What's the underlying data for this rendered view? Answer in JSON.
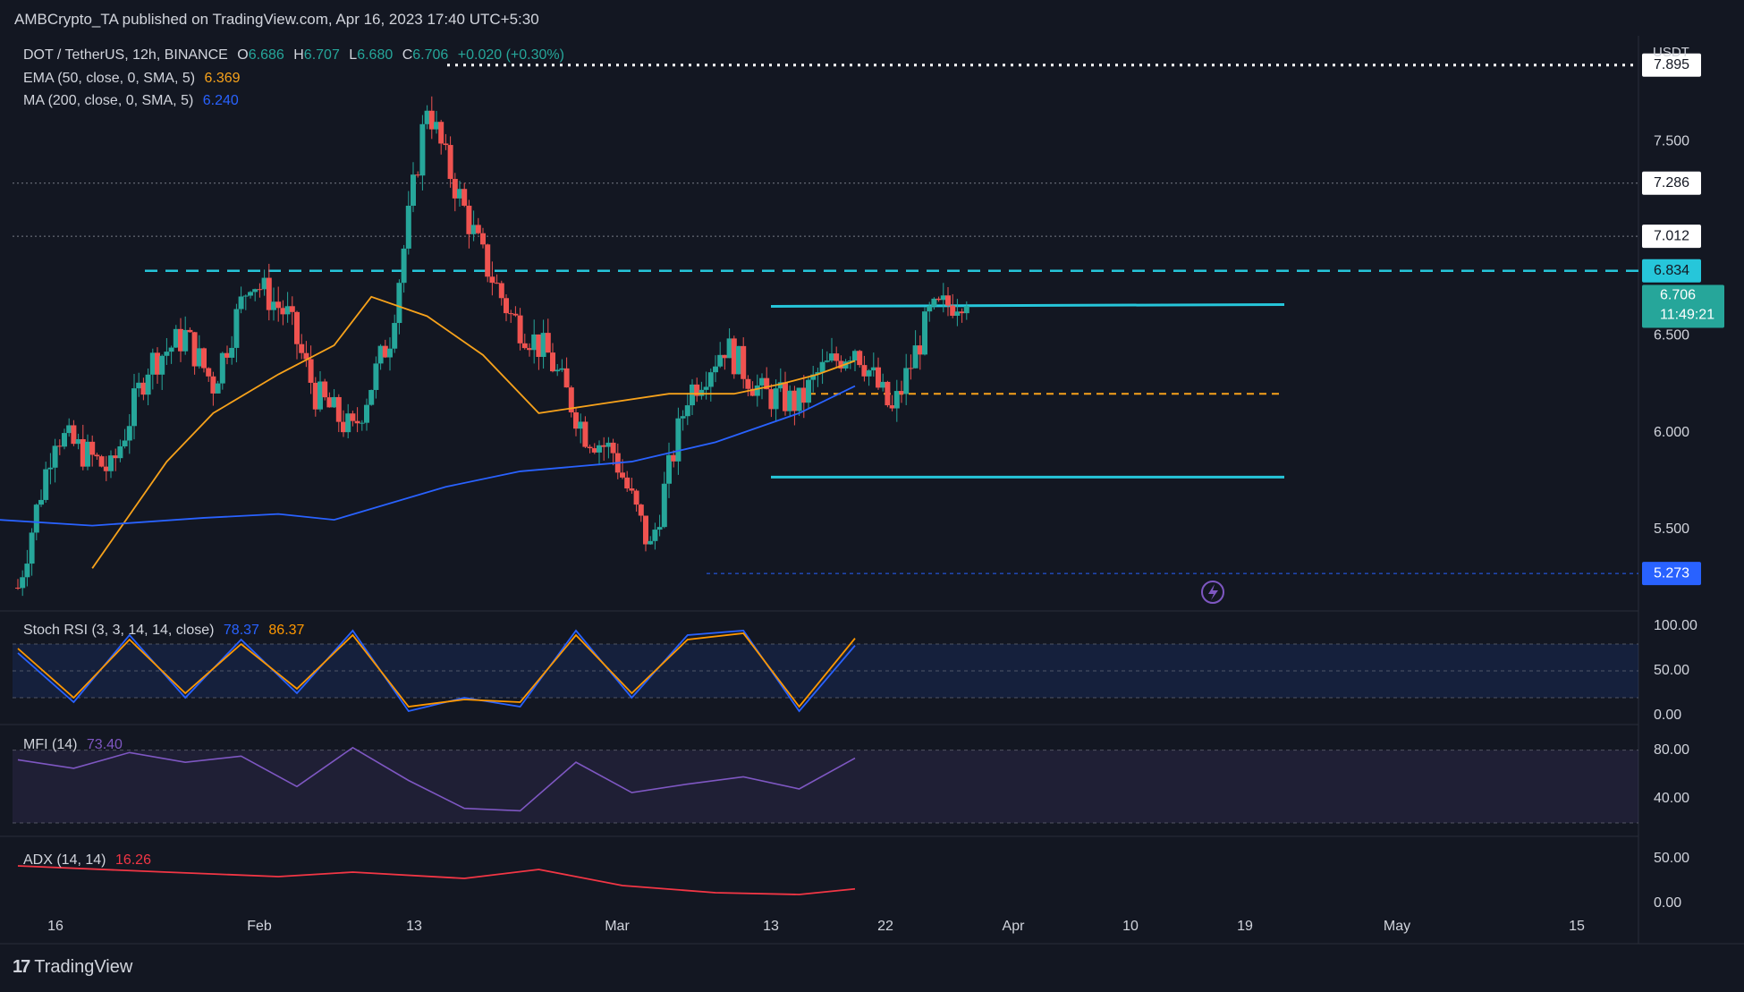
{
  "header": {
    "publisher": "AMBCrypto_TA published on TradingView.com, Apr 16, 2023 17:40 UTC+5:30"
  },
  "legend": {
    "symbol": "DOT / TetherUS, 12h, BINANCE",
    "o_label": "O",
    "o": "6.686",
    "h_label": "H",
    "h": "6.707",
    "l_label": "L",
    "l": "6.680",
    "c_label": "C",
    "c": "6.706",
    "change": "+0.020 (+0.30%)",
    "ema_label": "EMA (50, close, 0, SMA, 5)",
    "ema_value": "6.369",
    "ma_label": "MA (200, close, 0, SMA, 5)",
    "ma_value": "6.240"
  },
  "axis_unit": "USDT",
  "price_labels": {
    "p7895": "7.895",
    "p7286": "7.286",
    "p7012": "7.012",
    "p6834": "6.834",
    "current": "6.706",
    "countdown": "11:49:21",
    "p5273": "5.273"
  },
  "indicators": {
    "stoch_label": "Stoch RSI (3, 3, 14, 14, close)",
    "stoch_k": "78.37",
    "stoch_d": "86.37",
    "mfi_label": "MFI (14)",
    "mfi_value": "73.40",
    "adx_label": "ADX (14, 14)",
    "adx_value": "16.26"
  },
  "brand": {
    "name": "TradingView"
  },
  "colors": {
    "background": "#131722",
    "up": "#26a69a",
    "down": "#ef5350",
    "ema": "#f7a21b",
    "ma": "#2962ff",
    "cyan": "#26c6da",
    "stoch_k": "#2962ff",
    "stoch_d": "#ff9800",
    "mfi": "#7e57c2",
    "adx": "#f23645"
  },
  "chart_data": [
    {
      "type": "line",
      "title": "DOT / TetherUS, 12h, BINANCE",
      "ylabel": "USDT",
      "ylim": [
        5.08,
        8.0
      ],
      "price_ticks": [
        "7.500",
        "6.500",
        "6.000",
        "5.500"
      ],
      "x_ticks": [
        "16",
        "Feb",
        "13",
        "Mar",
        "13",
        "22",
        "Apr",
        "10",
        "19",
        "May",
        "15"
      ],
      "series": [
        {
          "name": "EMA (50, close, 0, SMA, 5)",
          "x": [
            "Jan 24",
            "Feb 1",
            "Feb 6",
            "Feb 13",
            "Feb 19",
            "Feb 23",
            "Mar 1",
            "Mar 7",
            "Mar 13",
            "Mar 20",
            "Mar 27",
            "Apr 3",
            "Apr 8",
            "Apr 12",
            "Apr 16"
          ],
          "values": [
            5.3,
            5.85,
            6.1,
            6.3,
            6.45,
            6.7,
            6.6,
            6.4,
            6.1,
            6.15,
            6.2,
            6.2,
            6.25,
            6.3,
            6.37
          ]
        },
        {
          "name": "MA (200, close, 0, SMA, 5)",
          "x": [
            "Jan 14",
            "Jan 24",
            "Feb 5",
            "Feb 13",
            "Feb 19",
            "Mar 3",
            "Mar 11",
            "Mar 23",
            "Apr 1",
            "Apr 10",
            "Apr 16"
          ],
          "values": [
            5.55,
            5.52,
            5.56,
            5.58,
            5.55,
            5.72,
            5.8,
            5.85,
            5.95,
            6.1,
            6.24
          ]
        }
      ],
      "levels": [
        7.895,
        7.286,
        7.012,
        6.834,
        6.706,
        5.273
      ],
      "annotations": [
        {
          "text": "horizontal dotted resistance",
          "value": 7.895
        },
        {
          "text": "dashed resistance",
          "value": 6.834
        },
        {
          "text": "range high",
          "value": 6.66
        },
        {
          "text": "range mid (dashed)",
          "value": 6.2
        },
        {
          "text": "range low",
          "value": 5.77
        },
        {
          "text": "dotted support",
          "value": 5.273
        }
      ]
    },
    {
      "type": "line",
      "title": "Stoch RSI (3, 3, 14, 14, close)",
      "ylim": [
        0,
        100
      ],
      "ticks": [
        "100.00",
        "50.00",
        "0.00"
      ],
      "series": [
        {
          "name": "K",
          "x": [
            "Jan 16",
            "Jan 22",
            "Jan 28",
            "Feb 3",
            "Feb 9",
            "Feb 15",
            "Feb 21",
            "Feb 27",
            "Mar 5",
            "Mar 11",
            "Mar 17",
            "Mar 23",
            "Mar 29",
            "Apr 4",
            "Apr 10",
            "Apr 16"
          ],
          "values": [
            70,
            15,
            90,
            20,
            85,
            25,
            95,
            5,
            20,
            10,
            95,
            20,
            90,
            95,
            5,
            78.37
          ]
        },
        {
          "name": "D",
          "x": [
            "Jan 16",
            "Jan 22",
            "Jan 28",
            "Feb 3",
            "Feb 9",
            "Feb 15",
            "Feb 21",
            "Feb 27",
            "Mar 5",
            "Mar 11",
            "Mar 17",
            "Mar 23",
            "Mar 29",
            "Apr 4",
            "Apr 10",
            "Apr 16"
          ],
          "values": [
            75,
            20,
            85,
            25,
            80,
            30,
            90,
            10,
            18,
            15,
            90,
            25,
            85,
            92,
            10,
            86.37
          ]
        }
      ]
    },
    {
      "type": "line",
      "title": "MFI (14)",
      "ylim": [
        20,
        90
      ],
      "ticks": [
        "80.00",
        "40.00"
      ],
      "series": [
        {
          "name": "MFI",
          "x": [
            "Jan 16",
            "Jan 22",
            "Jan 28",
            "Feb 3",
            "Feb 9",
            "Feb 15",
            "Feb 21",
            "Feb 27",
            "Mar 5",
            "Mar 11",
            "Mar 17",
            "Mar 23",
            "Mar 29",
            "Apr 4",
            "Apr 10",
            "Apr 16"
          ],
          "values": [
            72,
            65,
            78,
            70,
            75,
            50,
            82,
            55,
            32,
            30,
            70,
            45,
            52,
            58,
            48,
            73.4
          ]
        }
      ]
    },
    {
      "type": "line",
      "title": "ADX (14, 14)",
      "ylim": [
        0,
        60
      ],
      "ticks": [
        "50.00",
        "0.00"
      ],
      "series": [
        {
          "name": "ADX",
          "x": [
            "Jan 16",
            "Feb 1",
            "Feb 13",
            "Feb 21",
            "Mar 5",
            "Mar 13",
            "Mar 22",
            "Apr 1",
            "Apr 10",
            "Apr 16"
          ],
          "values": [
            42,
            35,
            30,
            35,
            28,
            38,
            20,
            12,
            10,
            16.26
          ]
        }
      ]
    }
  ]
}
